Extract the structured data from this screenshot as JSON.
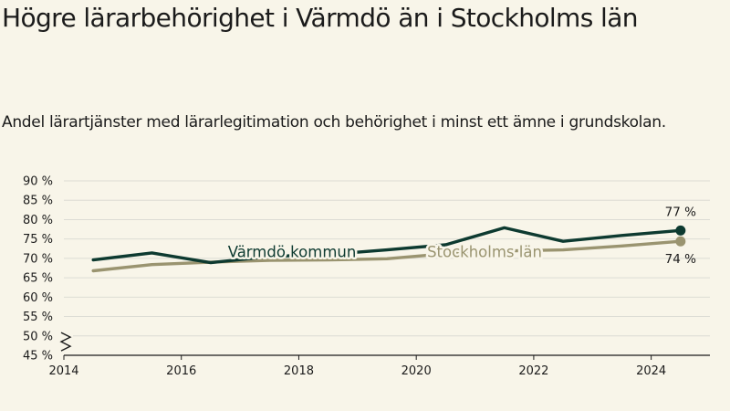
{
  "title": "Högre lärarbehörighet i Värmdö än i Stockholms län",
  "subtitle": "Andel lärartjänster med lärarlegitimation och behörighet i minst ett ämne i grundskolan.",
  "colors": {
    "background": "#f8f5e9",
    "grid": "#dcdcd4",
    "axis": "#1b1b1b",
    "varmdo": "#0d3a30",
    "stockholm": "#9a9470"
  },
  "chart_data": {
    "type": "line",
    "x": [
      2014.5,
      2015.5,
      2016.5,
      2017.5,
      2018.5,
      2019.5,
      2020.5,
      2021.5,
      2022.5,
      2023.5,
      2024.5
    ],
    "xticks": [
      "2014",
      "2016",
      "2018",
      "2020",
      "2022",
      "2024"
    ],
    "xtick_values": [
      2014,
      2016,
      2018,
      2020,
      2022,
      2024
    ],
    "xlim": [
      2014,
      2025
    ],
    "yticks": [
      "45 %",
      "50 %",
      "55 %",
      "60 %",
      "65 %",
      "70 %",
      "75 %",
      "80 %",
      "85 %",
      "90 %"
    ],
    "ytick_values": [
      45,
      50,
      55,
      60,
      65,
      70,
      75,
      80,
      85,
      90
    ],
    "ylim": [
      45,
      90
    ],
    "axis_break": true,
    "series": [
      {
        "name": "Värmdö kommun",
        "key": "varmdo",
        "values": [
          69.6,
          71.4,
          68.9,
          70.5,
          71.0,
          72.2,
          73.5,
          77.9,
          74.4,
          75.9,
          77.2
        ],
        "end_label": "77 %"
      },
      {
        "name": "Stockholms län",
        "key": "stockholm",
        "values": [
          66.8,
          68.4,
          69.0,
          69.5,
          69.6,
          69.9,
          71.2,
          71.9,
          72.2,
          73.2,
          74.4
        ],
        "end_label": "74 %"
      }
    ]
  }
}
